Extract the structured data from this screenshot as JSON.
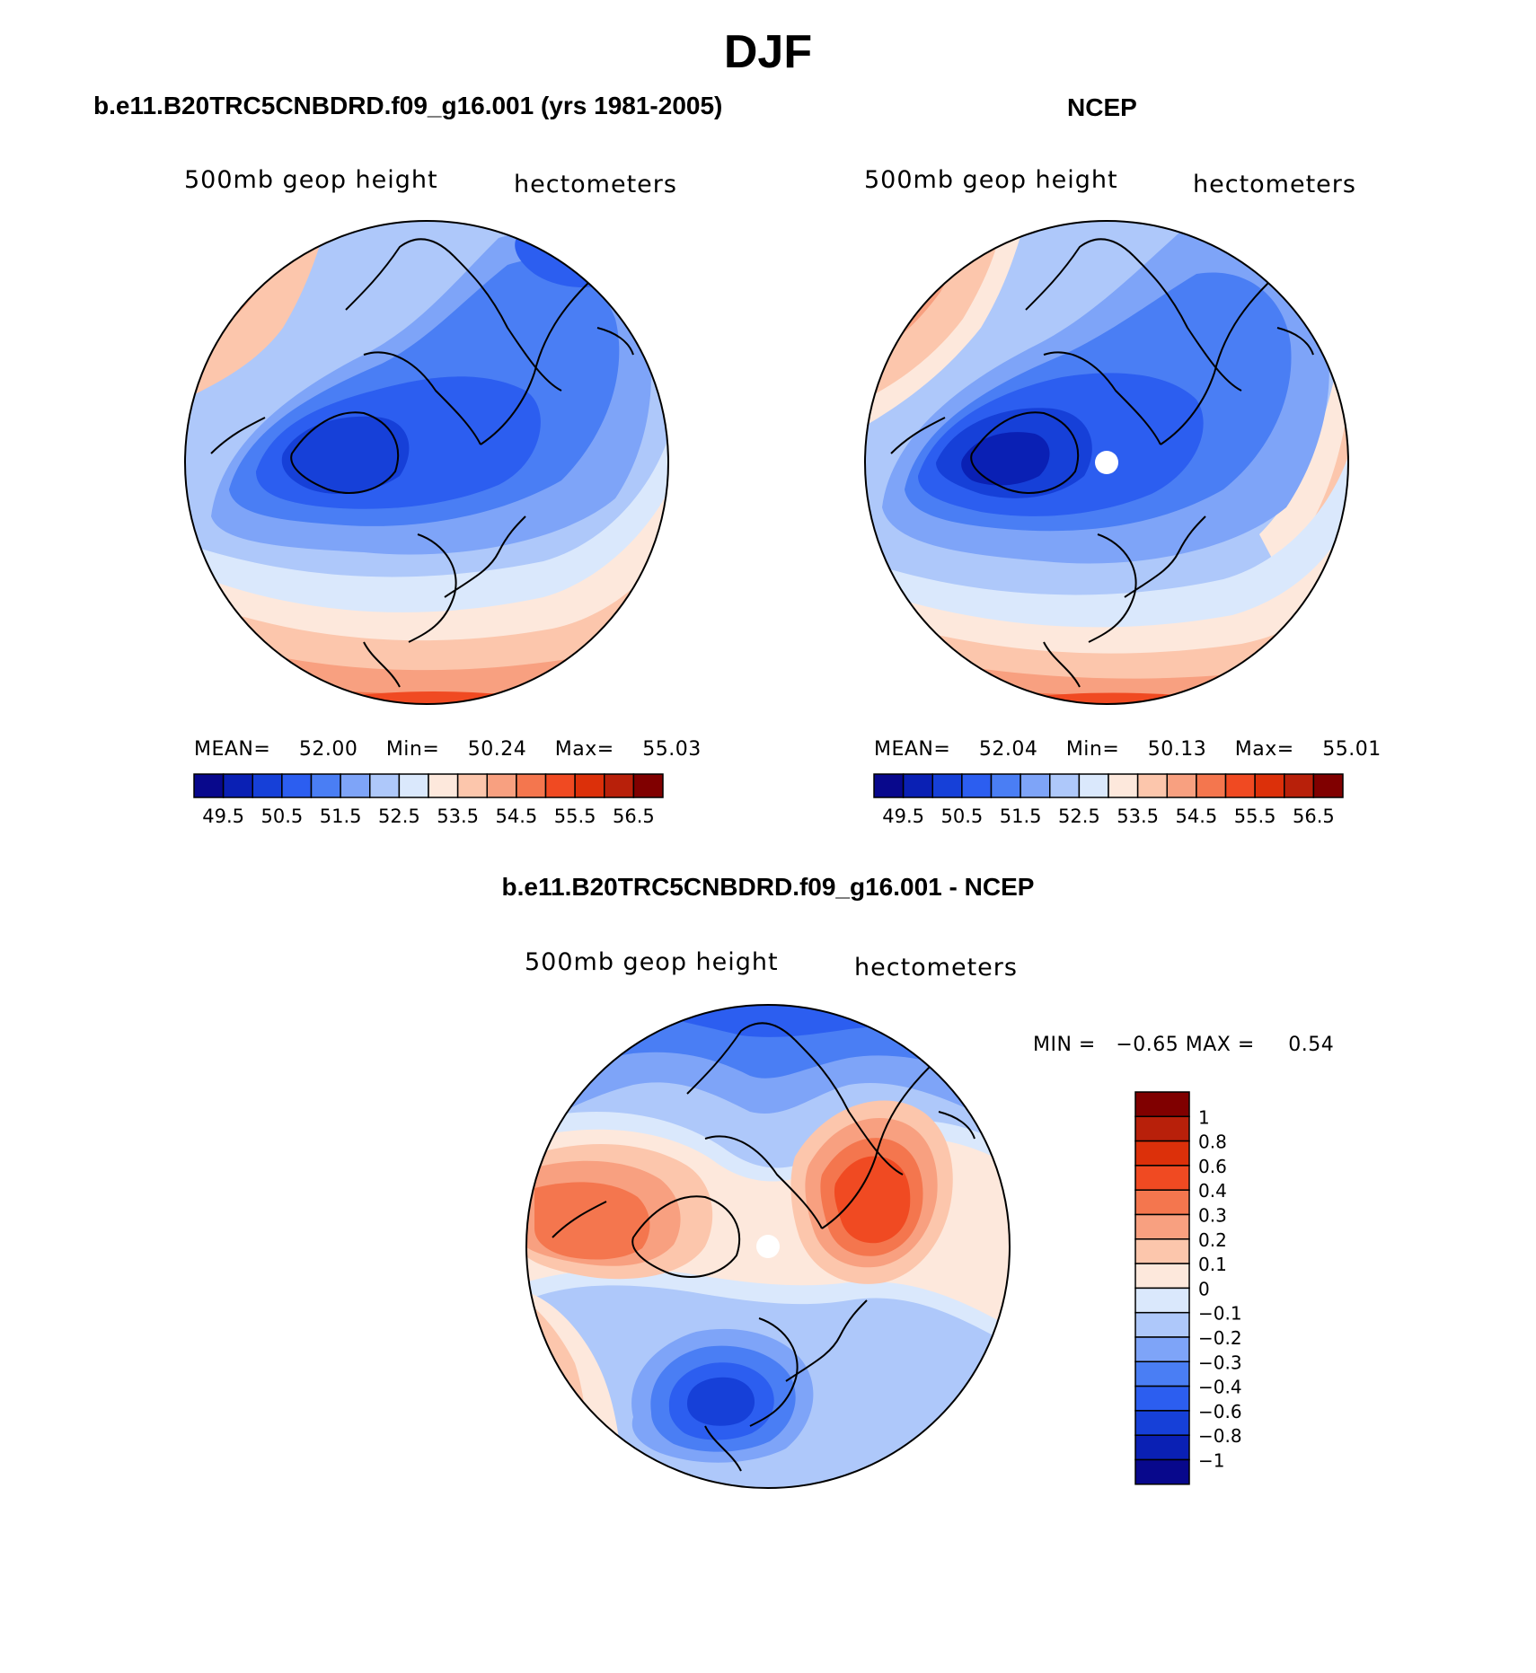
{
  "figure": {
    "title": "DJF",
    "panel_model": {
      "heading": "b.e11.B20TRC5CNBDRD.f09_g16.001 (yrs 1981-2005)",
      "left_label": "500mb geop height",
      "right_label": "hectometers",
      "mean_label": "MEAN=",
      "mean_value": "52.00",
      "min_label": "Min=",
      "min_value": "50.24",
      "max_label": "Max=",
      "max_value": "55.03"
    },
    "panel_obs": {
      "heading": "NCEP",
      "left_label": "500mb geop height",
      "right_label": "hectometers",
      "mean_label": "MEAN=",
      "mean_value": "52.04",
      "min_label": "Min=",
      "min_value": "50.13",
      "max_label": "Max=",
      "max_value": "55.01"
    },
    "panel_diff": {
      "heading": "b.e11.B20TRC5CNBDRD.f09_g16.001 - NCEP",
      "left_label": "500mb geop height",
      "right_label": "hectometers",
      "minmax_text": "MIN =   −0.65 MAX =     0.54"
    },
    "abs_colorbar": {
      "colors": [
        "#08088c",
        "#0a20b4",
        "#1640d8",
        "#2c5ef0",
        "#4a7ef4",
        "#7ea4f8",
        "#aec8fa",
        "#dae8fc",
        "#fde8dc",
        "#fcc6ac",
        "#f8a080",
        "#f4764e",
        "#f04a22",
        "#dc300a",
        "#b8200a",
        "#800000"
      ],
      "labels": [
        "49.5",
        "50.5",
        "51.5",
        "52.5",
        "53.5",
        "54.5",
        "55.5",
        "56.5"
      ]
    },
    "diff_colorbar": {
      "colors": [
        "#08088c",
        "#0a20b4",
        "#1640d8",
        "#2c5ef0",
        "#4a7ef4",
        "#7ea4f8",
        "#aec8fa",
        "#dae8fc",
        "#fde8dc",
        "#fcc6ac",
        "#f8a080",
        "#f4764e",
        "#f04a22",
        "#dc300a",
        "#b8200a",
        "#800000"
      ],
      "labels": [
        "1",
        "0.8",
        "0.6",
        "0.4",
        "0.3",
        "0.2",
        "0.1",
        "0",
        "−0.1",
        "−0.2",
        "−0.3",
        "−0.4",
        "−0.6",
        "−0.8",
        "−1"
      ]
    }
  }
}
